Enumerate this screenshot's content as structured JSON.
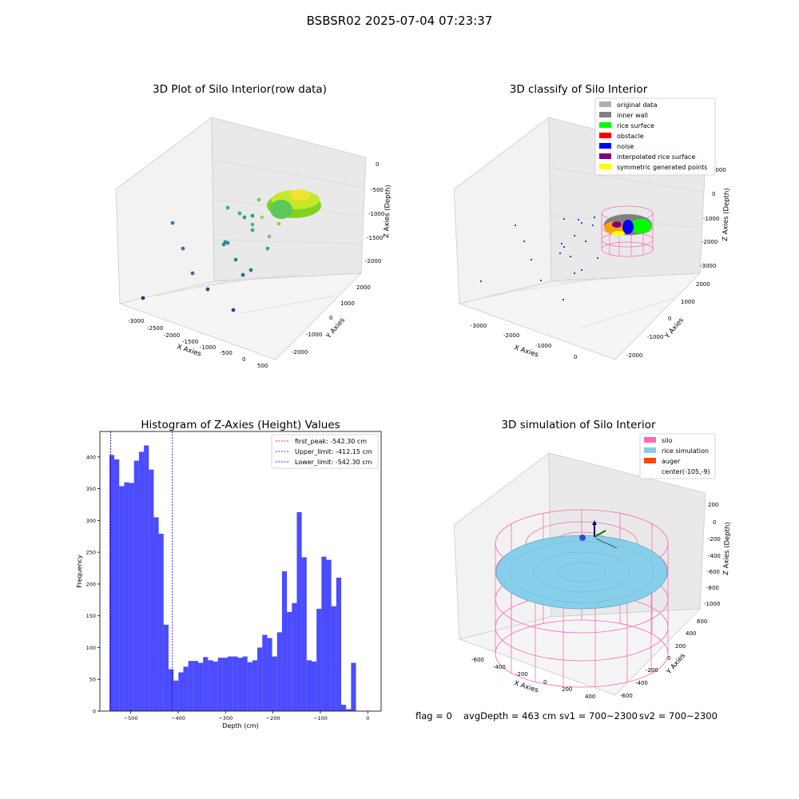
{
  "figure_title": "BSBSR02 2025-07-04 07:23:37",
  "footer": {
    "flag": "flag = 0",
    "avg_depth": "avgDepth = 463 cm",
    "sv1": "sv1 = 700~2300",
    "sv2": "sv2 = 700~2300"
  },
  "panels": {
    "raw": {
      "title": "3D Plot of Silo Interior(row data)",
      "xlabel": "X Axies",
      "ylabel": "Y Axies",
      "zlabel": "Z Axies (Depth)",
      "xticks": [
        "-3000",
        "-2500",
        "-2000",
        "-1500",
        "-1000",
        "-500",
        "0",
        "500"
      ],
      "yticks": [
        "2000",
        "1000",
        "0",
        "-1000",
        "-2000"
      ],
      "zticks": [
        "0",
        "-500",
        "-1000",
        "-1500",
        "-2000"
      ]
    },
    "classify": {
      "title": "3D classify of Silo Interior",
      "xlabel": "X Axies",
      "ylabel": "Y Axies",
      "zlabel": "Z Axies (Depth)",
      "xticks": [
        "-3000",
        "-2000",
        "-1000",
        "0"
      ],
      "yticks": [
        "2000",
        "1000",
        "0",
        "-1000",
        "-2000"
      ],
      "zticks": [
        "1000",
        "0",
        "-1000",
        "-2000",
        "-3000"
      ],
      "legend": [
        {
          "label": "original data",
          "color": "#b0b0b0"
        },
        {
          "label": "inner wall",
          "color": "#808080"
        },
        {
          "label": "rice surface",
          "color": "#00ff00"
        },
        {
          "label": "obstacle",
          "color": "#ff0000"
        },
        {
          "label": "noise",
          "color": "#0000ff"
        },
        {
          "label": "interpolated rice surface",
          "color": "#800080"
        },
        {
          "label": "symmetric generated points",
          "color": "#ffff00"
        }
      ]
    },
    "simulation": {
      "title": "3D simulation of Silo Interior",
      "xlabel": "X Axies",
      "ylabel": "Y Axies",
      "zlabel": "Z Axies (Depth)",
      "xticks": [
        "-600",
        "-400",
        "-200",
        "0",
        "200",
        "400"
      ],
      "yticks": [
        "600",
        "400",
        "200",
        "0",
        "-200",
        "-400",
        "-600"
      ],
      "zticks": [
        "200",
        "0",
        "-200",
        "-400",
        "-600",
        "-800",
        "-1000"
      ],
      "legend": [
        {
          "label": "silo",
          "color": "#ff69b4"
        },
        {
          "label": "rice simulation",
          "color": "#87ceeb"
        },
        {
          "label": "auger",
          "color": "#ff4500"
        },
        {
          "label": "center(-105,-9)",
          "color": "none"
        }
      ]
    }
  },
  "chart_data": {
    "type": "bar",
    "title": "Histogram of Z-Axies (Height) Values",
    "xlabel": "Depth (cm)",
    "ylabel": "Frequency",
    "xlim": [
      -565,
      28
    ],
    "ylim": [
      0,
      440
    ],
    "xticks": [
      -500,
      -400,
      -300,
      -200,
      -100,
      0
    ],
    "yticks": [
      0,
      50,
      100,
      150,
      200,
      250,
      300,
      350,
      400
    ],
    "bar_color": "#0000ff",
    "bin_start": -545,
    "bin_width": 10.4,
    "values": [
      403,
      396,
      354,
      360,
      359,
      394,
      408,
      418,
      380,
      305,
      279,
      136,
      66,
      48,
      61,
      70,
      79,
      79,
      76,
      85,
      80,
      78,
      84,
      84,
      86,
      86,
      84,
      86,
      77,
      80,
      100,
      120,
      115,
      86,
      124,
      220,
      156,
      170,
      313,
      242,
      80,
      78,
      161,
      243,
      238,
      165,
      210,
      10,
      3,
      76
    ],
    "reference_lines": [
      {
        "label": "first_peak: -542.30 cm",
        "value": -542.3,
        "color": "#ff0000"
      },
      {
        "label": "Upper_limit: -412.15 cm",
        "value": -412.15,
        "color": "#0000ff"
      },
      {
        "label": "Lower_limit: -542.30 cm",
        "value": -542.3,
        "color": "#0000ff"
      }
    ],
    "legend_position": "upper right"
  }
}
